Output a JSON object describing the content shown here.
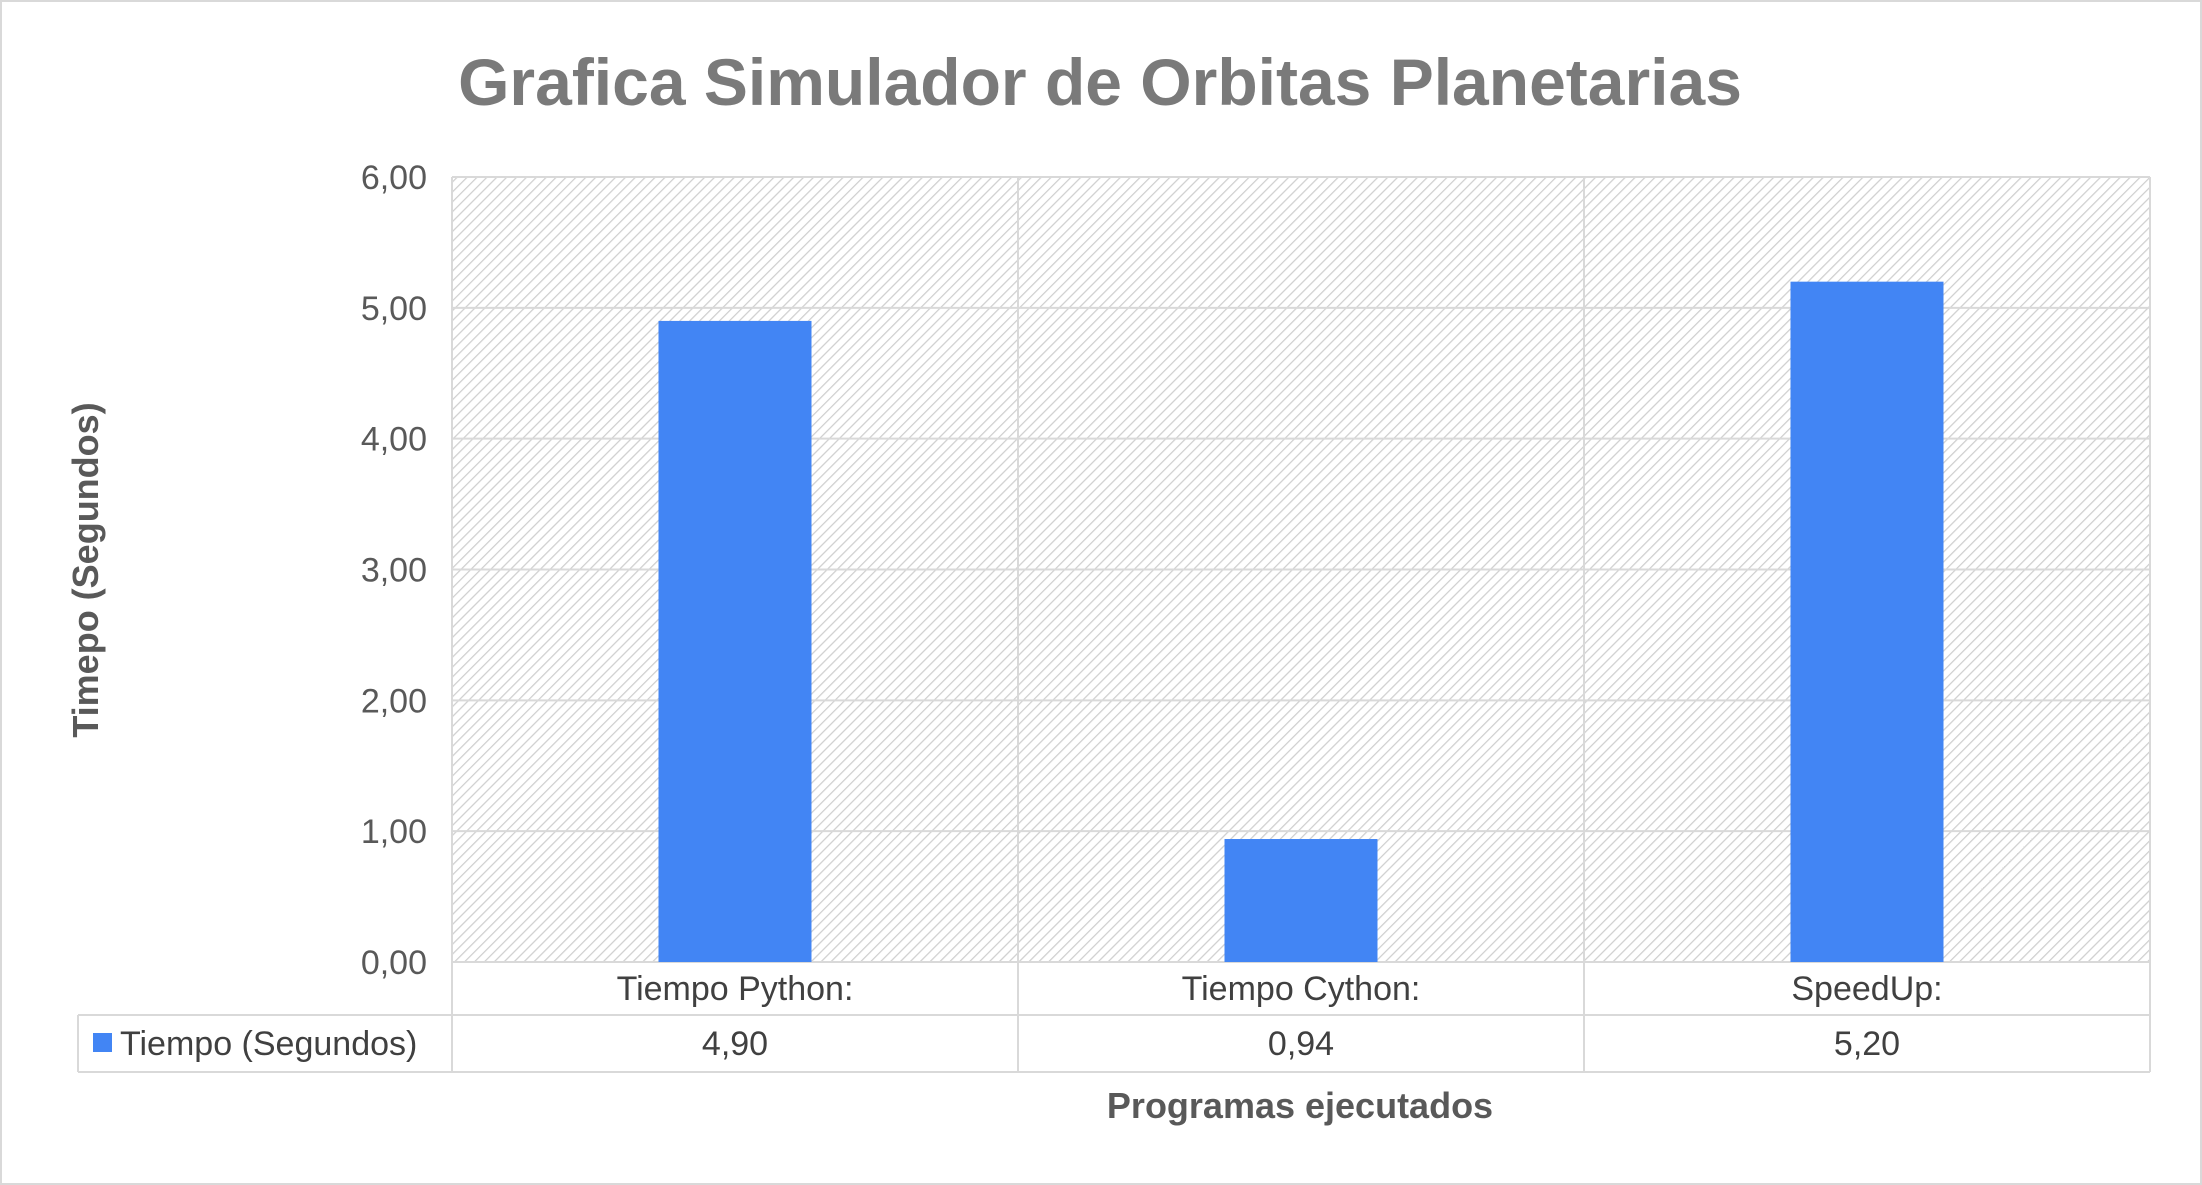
{
  "chart_data": {
    "type": "bar",
    "title": "Grafica Simulador de Orbitas Planetarias",
    "xlabel": "Programas ejecutados",
    "ylabel": "Timepo (Segundos)",
    "categories": [
      "Tiempo Python:",
      "Tiempo Cython:",
      "SpeedUp:"
    ],
    "series": [
      {
        "name": "Tiempo (Segundos)",
        "values": [
          4.9,
          0.94,
          5.2
        ],
        "labels": [
          "4,90",
          "0,94",
          "5,20"
        ],
        "color": "#4285f4"
      }
    ],
    "ylim": [
      0,
      6
    ],
    "yticks": [
      0,
      1,
      2,
      3,
      4,
      5,
      6
    ],
    "ytick_labels": [
      "0,00",
      "1,00",
      "2,00",
      "3,00",
      "4,00",
      "5,00",
      "6,00"
    ],
    "grid": true,
    "legend": "data-table-left",
    "data_table": true
  },
  "colors": {
    "bar": "#4285f4",
    "grid": "#d9d9d9",
    "title": "#7a7a7a",
    "text": "#595959"
  }
}
